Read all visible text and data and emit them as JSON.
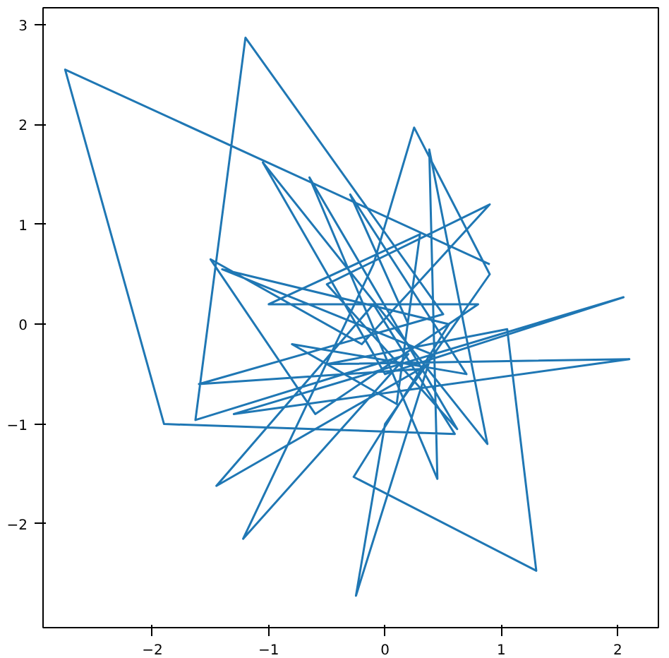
{
  "chart_data": {
    "type": "line",
    "x": [
      0.9,
      -2.75,
      -1.9,
      0.6,
      -0.1,
      -1.45,
      0.3,
      -1.6,
      0.5,
      -1.2,
      -1.63,
      0.2,
      -1.22,
      -0.1,
      0.25,
      0.9,
      0.0,
      -0.25,
      0.4,
      -1.4,
      0.55,
      -0.27,
      1.3,
      1.05,
      -0.5,
      2.1,
      -1.3,
      2.05,
      0.0,
      -1.05,
      0.88,
      0.38,
      0.45,
      -0.65,
      0.62,
      -0.5,
      0.9,
      -0.2,
      -1.5,
      -0.6,
      0.8,
      -1.0,
      0.3,
      0.1,
      -0.8,
      0.7,
      -0.3,
      0.2
    ],
    "series": [
      {
        "color": "#1f77b4",
        "values": [
          0.6,
          2.55,
          -1.0,
          -1.1,
          0.2,
          -1.62,
          -0.45,
          -0.6,
          0.1,
          2.87,
          -0.96,
          -0.3,
          -2.15,
          0.6,
          1.97,
          0.5,
          -1.0,
          -2.72,
          -0.3,
          0.55,
          0.0,
          -1.53,
          -2.47,
          -0.05,
          -0.4,
          -0.35,
          -0.9,
          0.27,
          -0.5,
          1.62,
          -1.2,
          1.75,
          -1.55,
          1.47,
          -1.05,
          0.4,
          1.2,
          -0.2,
          0.65,
          -0.9,
          0.2,
          0.2,
          0.9,
          -0.8,
          -0.2,
          -0.5,
          1.3,
          0.0
        ]
      }
    ],
    "xlim": [
      -2.94,
      2.35
    ],
    "ylim": [
      -3.04,
      3.17
    ],
    "xticks": [
      {
        "value": -2,
        "label": "−2"
      },
      {
        "value": -1,
        "label": "−1"
      },
      0,
      1,
      2
    ],
    "yticks": [
      {
        "value": -2,
        "label": "−2"
      },
      {
        "value": -1,
        "label": "−1"
      },
      0,
      1,
      2,
      3
    ],
    "grid": false,
    "marker": "none",
    "line_style": "solid"
  }
}
